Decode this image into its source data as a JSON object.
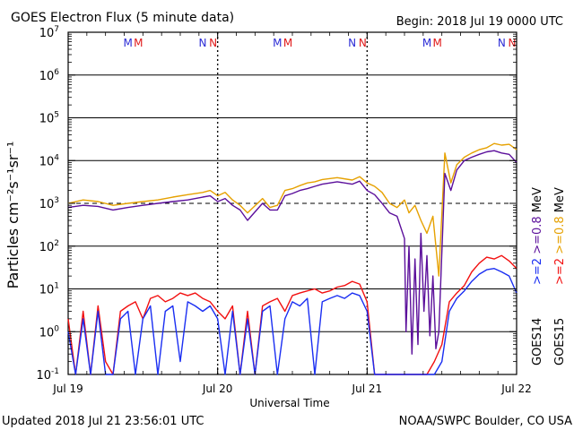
{
  "header": {
    "title": "GOES Electron Flux (5 minute data)",
    "begin": "Begin: 2018 Jul 19 0000 UTC"
  },
  "footer": {
    "updated": "Updated 2018 Jul 21 23:56:01 UTC",
    "credit": "NOAA/SWPC Boulder, CO USA"
  },
  "colors": {
    "goes14_ge08": "#5b0f9b",
    "goes15_ge08": "#e6a100",
    "goes14_ge2": "#1a2ef2",
    "goes15_ge2": "#f21010",
    "marker_m": "#2b2bd6",
    "marker_n": "#2b2bd6",
    "marker_m2": "#e01818",
    "marker_n2": "#e01818",
    "text": "#000000"
  },
  "chart_data": {
    "type": "line",
    "title": "GOES Electron Flux (5 minute data)",
    "xlabel": "Universal Time",
    "ylabel": "Particles cm⁻²s⁻¹sr⁻¹",
    "yscale": "log",
    "ylim": [
      0.1,
      10000000
    ],
    "xlim": [
      0,
      3
    ],
    "x_unit": "days since 2018 Jul 19 0000 UTC",
    "x_ticks": [
      {
        "x": 0,
        "label": "Jul 19"
      },
      {
        "x": 1,
        "label": "Jul 20"
      },
      {
        "x": 2,
        "label": "Jul 21"
      },
      {
        "x": 3,
        "label": "Jul 22"
      }
    ],
    "y_ticks": [
      {
        "exp": -1
      },
      {
        "exp": 0
      },
      {
        "exp": 1
      },
      {
        "exp": 2
      },
      {
        "exp": 3
      },
      {
        "exp": 4
      },
      {
        "exp": 5
      },
      {
        "exp": 6
      },
      {
        "exp": 7
      }
    ],
    "y_tick_base": "10",
    "grid": "horizontal at each decade",
    "threshold_dashed": 1000,
    "day_dividers_dotted": [
      1,
      2
    ],
    "markers": [
      {
        "x": 0.4,
        "text": "M",
        "color_key": "marker_m"
      },
      {
        "x": 0.47,
        "text": "M",
        "color_key": "marker_m2"
      },
      {
        "x": 0.9,
        "text": "N",
        "color_key": "marker_n"
      },
      {
        "x": 0.97,
        "text": "N",
        "color_key": "marker_n2"
      },
      {
        "x": 1.4,
        "text": "M",
        "color_key": "marker_m"
      },
      {
        "x": 1.47,
        "text": "M",
        "color_key": "marker_m2"
      },
      {
        "x": 1.9,
        "text": "N",
        "color_key": "marker_n"
      },
      {
        "x": 1.97,
        "text": "N",
        "color_key": "marker_n2"
      },
      {
        "x": 2.4,
        "text": "M",
        "color_key": "marker_m"
      },
      {
        "x": 2.47,
        "text": "M",
        "color_key": "marker_m2"
      },
      {
        "x": 2.9,
        "text": "N",
        "color_key": "marker_n"
      },
      {
        "x": 2.97,
        "text": "N",
        "color_key": "marker_n2"
      }
    ],
    "legend": {
      "placement": "right side, vertical",
      "groups": [
        {
          "satellite": "GOES14",
          "entries": [
            {
              "label": ">=2",
              "color_key": "goes14_ge2"
            },
            {
              "label": ">=0.8",
              "color_key": "goes14_ge08"
            }
          ]
        },
        {
          "satellite": "GOES15",
          "entries": [
            {
              "label": ">=2",
              "color_key": "goes15_ge2"
            },
            {
              "label": ">=0.8",
              "color_key": "goes15_ge08"
            }
          ]
        }
      ],
      "unit": "MeV"
    },
    "series": [
      {
        "name": "GOES15 >=0.8 MeV",
        "color_key": "goes15_ge08",
        "x": [
          0.0,
          0.1,
          0.2,
          0.3,
          0.4,
          0.5,
          0.6,
          0.7,
          0.8,
          0.9,
          0.95,
          1.0,
          1.05,
          1.1,
          1.15,
          1.2,
          1.3,
          1.35,
          1.4,
          1.45,
          1.5,
          1.55,
          1.6,
          1.65,
          1.7,
          1.8,
          1.9,
          1.95,
          2.0,
          2.05,
          2.1,
          2.15,
          2.2,
          2.25,
          2.28,
          2.32,
          2.36,
          2.4,
          2.44,
          2.48,
          2.52,
          2.56,
          2.6,
          2.65,
          2.7,
          2.75,
          2.8,
          2.85,
          2.9,
          2.95,
          3.0
        ],
        "y": [
          1000,
          1200,
          1100,
          900,
          1000,
          1100,
          1200,
          1400,
          1600,
          1800,
          2000,
          1500,
          1800,
          1200,
          900,
          600,
          1300,
          800,
          900,
          2000,
          2200,
          2600,
          3000,
          3200,
          3600,
          4000,
          3500,
          4200,
          3000,
          2500,
          1800,
          1000,
          800,
          1200,
          600,
          900,
          400,
          200,
          500,
          20,
          15000,
          3000,
          8000,
          12000,
          15000,
          18000,
          20000,
          25000,
          23000,
          24000,
          18000
        ]
      },
      {
        "name": "GOES14 >=0.8 MeV",
        "color_key": "goes14_ge08",
        "x": [
          0.0,
          0.1,
          0.2,
          0.3,
          0.4,
          0.5,
          0.6,
          0.7,
          0.8,
          0.9,
          0.95,
          1.0,
          1.05,
          1.1,
          1.15,
          1.2,
          1.3,
          1.35,
          1.4,
          1.45,
          1.5,
          1.55,
          1.6,
          1.65,
          1.7,
          1.8,
          1.9,
          1.95,
          2.0,
          2.05,
          2.1,
          2.15,
          2.2,
          2.25,
          2.26,
          2.28,
          2.3,
          2.32,
          2.34,
          2.36,
          2.38,
          2.4,
          2.42,
          2.44,
          2.46,
          2.48,
          2.52,
          2.56,
          2.6,
          2.65,
          2.7,
          2.75,
          2.8,
          2.85,
          2.9,
          2.95,
          3.0
        ],
        "y": [
          800,
          900,
          850,
          700,
          800,
          900,
          1000,
          1100,
          1200,
          1400,
          1500,
          1100,
          1300,
          900,
          700,
          400,
          1000,
          700,
          700,
          1500,
          1700,
          2000,
          2200,
          2500,
          2800,
          3200,
          2800,
          3300,
          2000,
          1600,
          1000,
          600,
          500,
          150,
          1.0,
          100,
          0.3,
          50,
          0.5,
          200,
          3,
          60,
          0.8,
          20,
          0.4,
          1,
          5000,
          2000,
          6000,
          10000,
          12000,
          14000,
          16000,
          17000,
          15000,
          14000,
          9000
        ]
      },
      {
        "name": "GOES15 >=2 MeV",
        "color_key": "goes15_ge2",
        "x": [
          0.0,
          0.05,
          0.1,
          0.15,
          0.2,
          0.25,
          0.3,
          0.35,
          0.4,
          0.45,
          0.5,
          0.55,
          0.6,
          0.65,
          0.7,
          0.75,
          0.8,
          0.85,
          0.9,
          0.95,
          1.0,
          1.05,
          1.1,
          1.15,
          1.2,
          1.25,
          1.3,
          1.35,
          1.4,
          1.45,
          1.5,
          1.55,
          1.6,
          1.65,
          1.7,
          1.75,
          1.8,
          1.85,
          1.9,
          1.95,
          2.0,
          2.05,
          2.1,
          2.15,
          2.2,
          2.25,
          2.3,
          2.35,
          2.4,
          2.45,
          2.5,
          2.55,
          2.6,
          2.65,
          2.7,
          2.75,
          2.8,
          2.85,
          2.9,
          2.95,
          3.0
        ],
        "y": [
          2,
          0.1,
          3,
          0.1,
          4,
          0.2,
          0.1,
          3,
          4,
          5,
          2,
          6,
          7,
          5,
          6,
          8,
          7,
          8,
          6,
          5,
          3,
          2,
          4,
          0.1,
          3,
          0.1,
          4,
          5,
          6,
          3,
          7,
          8,
          9,
          10,
          8,
          9,
          11,
          12,
          15,
          13,
          5,
          0.1,
          0.1,
          0.1,
          0.1,
          0.1,
          0.1,
          0.1,
          0.1,
          0.2,
          0.5,
          5,
          8,
          12,
          25,
          40,
          55,
          50,
          60,
          45,
          30
        ]
      },
      {
        "name": "GOES14 >=2 MeV",
        "color_key": "goes14_ge2",
        "x": [
          0.0,
          0.05,
          0.1,
          0.15,
          0.2,
          0.25,
          0.3,
          0.35,
          0.4,
          0.45,
          0.5,
          0.55,
          0.6,
          0.65,
          0.7,
          0.75,
          0.8,
          0.85,
          0.9,
          0.95,
          1.0,
          1.05,
          1.1,
          1.15,
          1.2,
          1.25,
          1.3,
          1.35,
          1.4,
          1.45,
          1.5,
          1.55,
          1.6,
          1.65,
          1.7,
          1.75,
          1.8,
          1.85,
          1.9,
          1.95,
          2.0,
          2.05,
          2.1,
          2.15,
          2.2,
          2.25,
          2.3,
          2.35,
          2.4,
          2.45,
          2.5,
          2.55,
          2.6,
          2.65,
          2.7,
          2.75,
          2.8,
          2.85,
          2.9,
          2.95,
          3.0
        ],
        "y": [
          1,
          0.1,
          2,
          0.1,
          3,
          0.1,
          0.1,
          2,
          3,
          0.1,
          2,
          4,
          0.1,
          3,
          4,
          0.2,
          5,
          4,
          3,
          4,
          2,
          0.1,
          3,
          0.1,
          2,
          0.1,
          3,
          4,
          0.1,
          2,
          5,
          4,
          6,
          0.1,
          5,
          6,
          7,
          6,
          8,
          7,
          3,
          0.1,
          0.1,
          0.1,
          0.1,
          0.1,
          0.1,
          0.1,
          0.1,
          0.1,
          0.2,
          3,
          6,
          9,
          15,
          22,
          28,
          30,
          25,
          20,
          8
        ]
      }
    ]
  }
}
